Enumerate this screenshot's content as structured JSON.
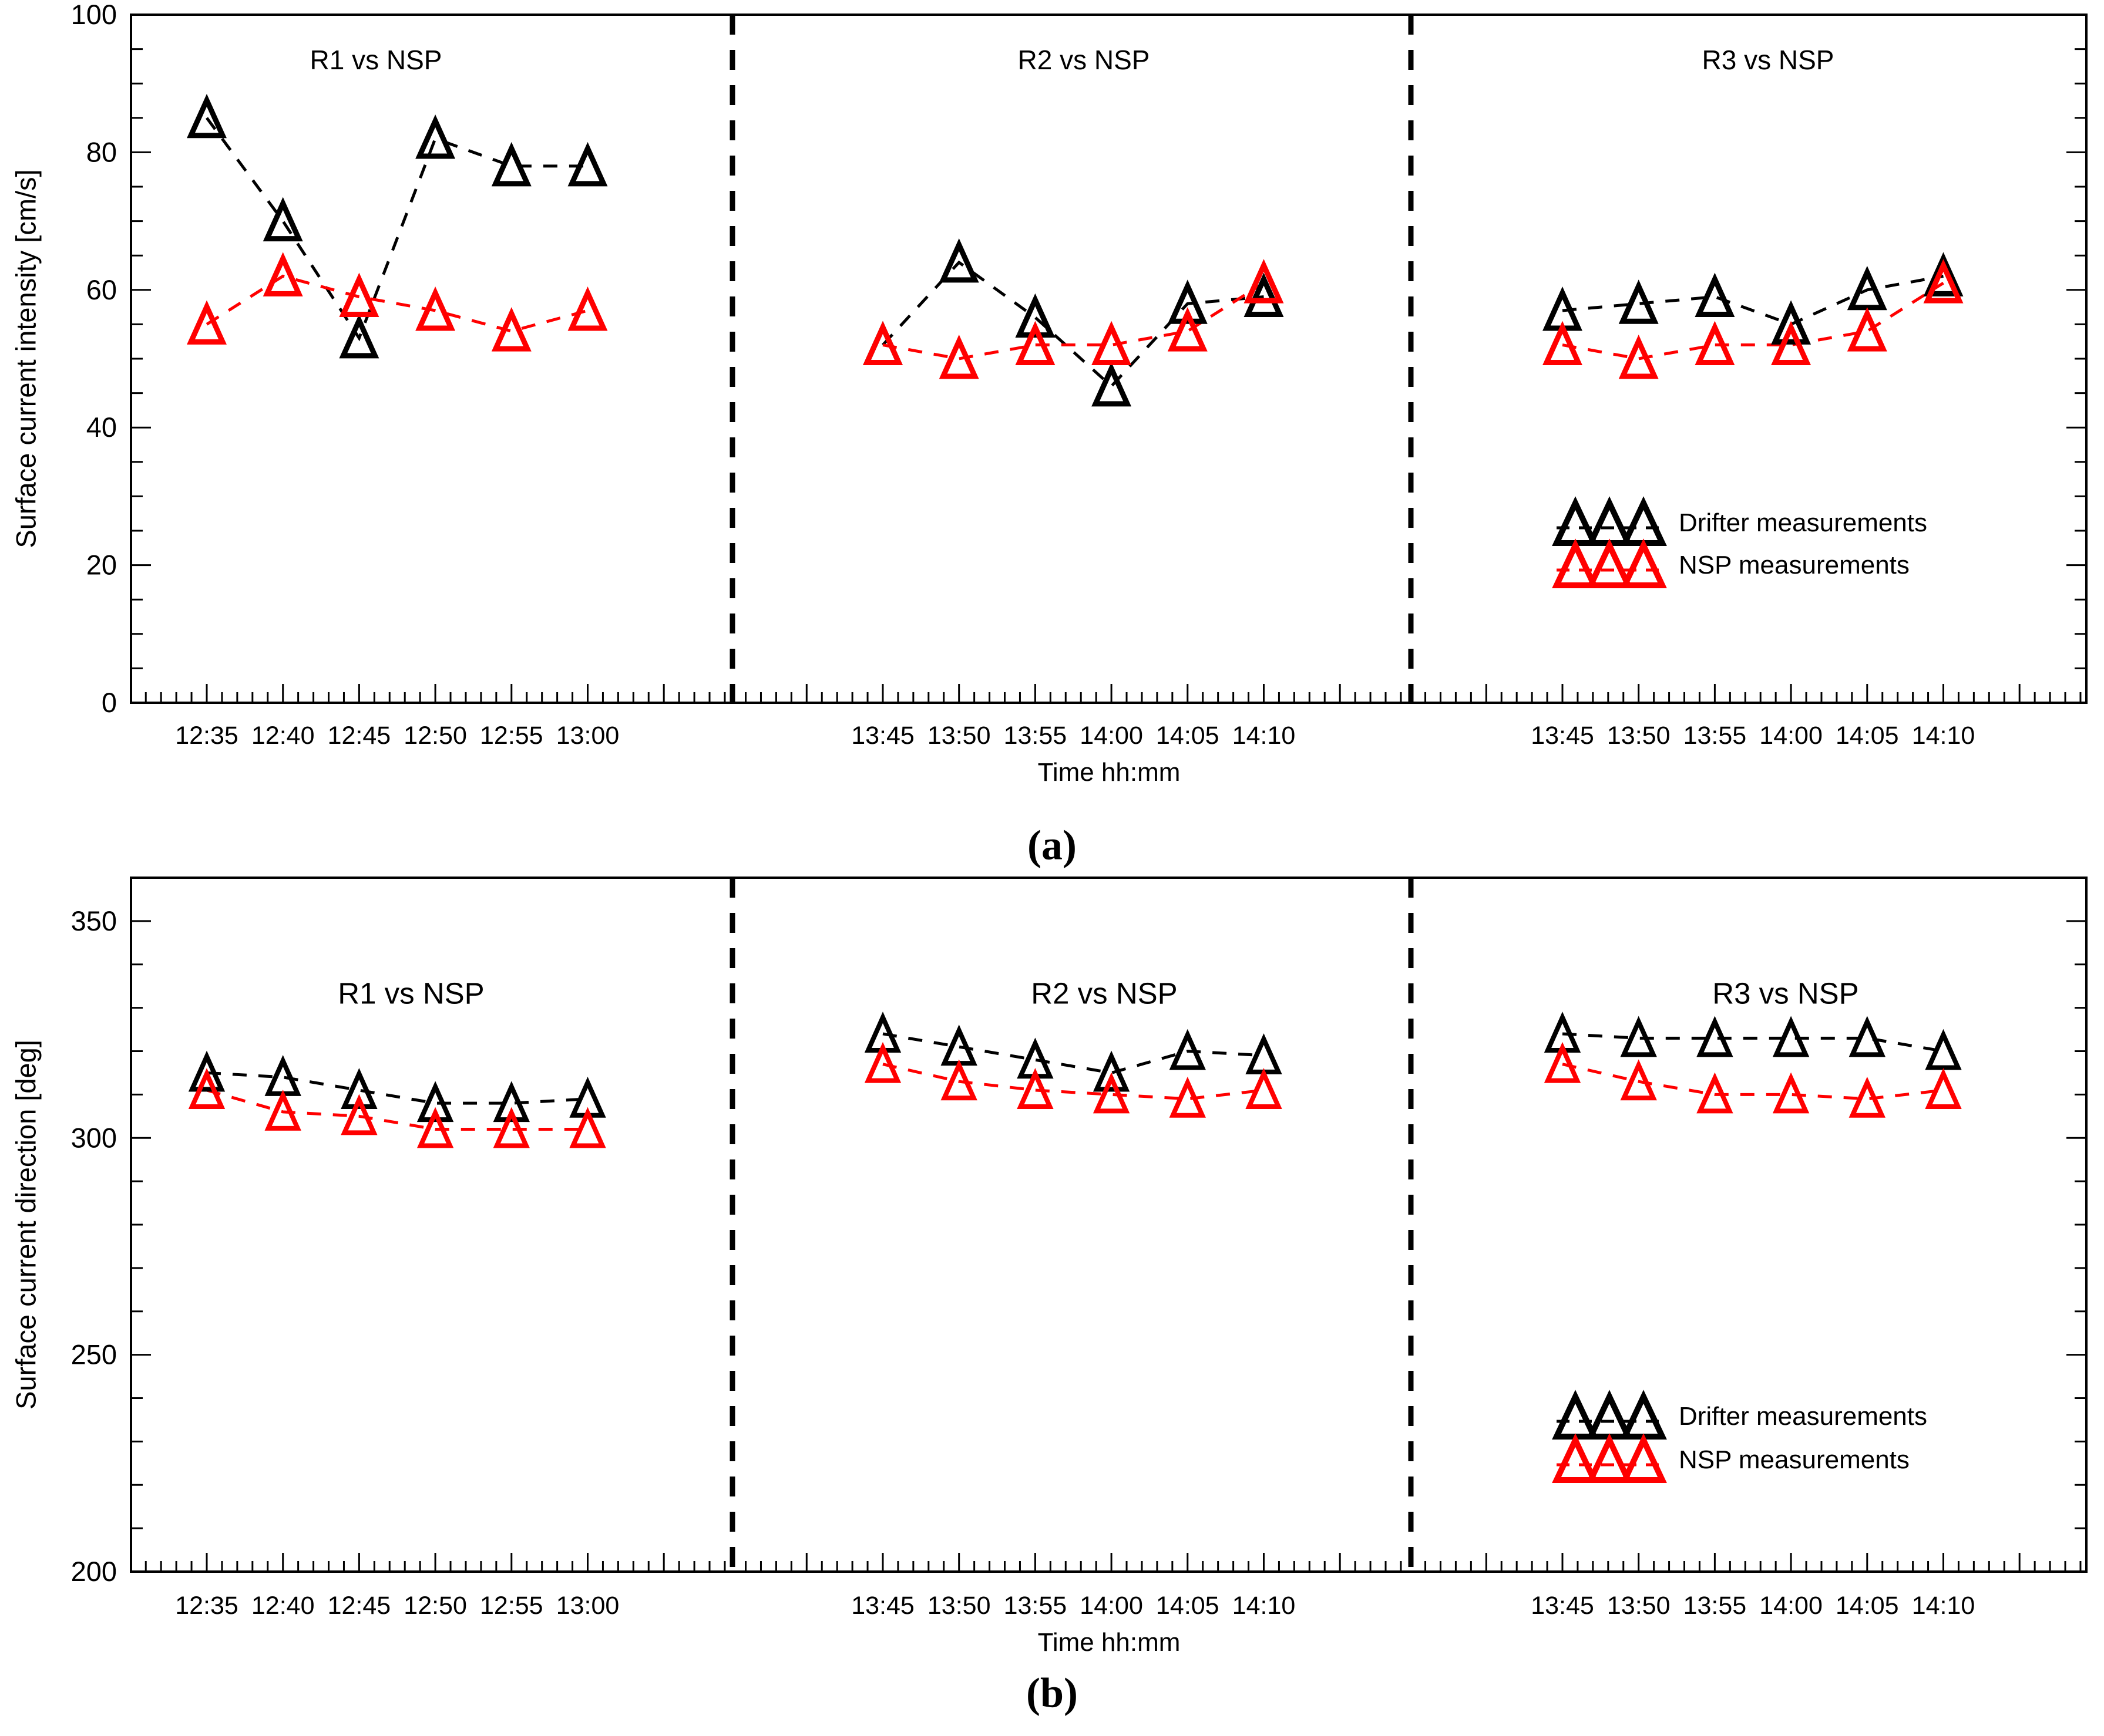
{
  "figure": {
    "caption_a": "(a)",
    "caption_b": "(b)",
    "background": "#ffffff",
    "colors": {
      "drifter": "#000000",
      "nsp": "#ff0000"
    },
    "legend": {
      "drifter_label": "Drifter measurements",
      "nsp_label": "NSP measurements"
    }
  },
  "chart_data": [
    {
      "type": "line",
      "figure_label": "(a)",
      "ylabel": "Surface current intensity [cm/s]",
      "xlabel": "Time hh:mm",
      "ylim": [
        0,
        100
      ],
      "yticks": [
        0,
        20,
        40,
        60,
        80,
        100
      ],
      "y_minor_step": 5,
      "marker": "triangle-open",
      "line_style": "dashed",
      "grid": false,
      "legend_position": "lower-right",
      "panels": [
        {
          "title": "R1 vs NSP",
          "x": [
            "12:35",
            "12:40",
            "12:45",
            "12:50",
            "12:55",
            "13:00"
          ],
          "series": [
            {
              "name": "Drifter measurements",
              "color": "#000000",
              "values": [
                85,
                70,
                53,
                82,
                78,
                78
              ]
            },
            {
              "name": "NSP measurements",
              "color": "#ff0000",
              "values": [
                55,
                62,
                59,
                57,
                54,
                57
              ]
            }
          ]
        },
        {
          "title": "R2 vs NSP",
          "x": [
            "13:45",
            "13:50",
            "13:55",
            "14:00",
            "14:05",
            "14:10"
          ],
          "series": [
            {
              "name": "Drifter measurements",
              "color": "#000000",
              "values": [
                52,
                64,
                56,
                46,
                58,
                59
              ]
            },
            {
              "name": "NSP measurements",
              "color": "#ff0000",
              "values": [
                52,
                50,
                52,
                52,
                54,
                61
              ]
            }
          ]
        },
        {
          "title": "R3 vs NSP",
          "x": [
            "13:45",
            "13:50",
            "13:55",
            "14:00",
            "14:05",
            "14:10"
          ],
          "series": [
            {
              "name": "Drifter measurements",
              "color": "#000000",
              "values": [
                57,
                58,
                59,
                55,
                60,
                62
              ]
            },
            {
              "name": "NSP measurements",
              "color": "#ff0000",
              "values": [
                52,
                50,
                52,
                52,
                54,
                61
              ]
            }
          ]
        }
      ]
    },
    {
      "type": "line",
      "figure_label": "(b)",
      "ylabel": "Surface current direction [deg]",
      "xlabel": "Time hh:mm",
      "ylim": [
        200,
        360
      ],
      "yticks": [
        200,
        250,
        300,
        350
      ],
      "y_minor_step": 10,
      "marker": "triangle-open",
      "line_style": "dashed",
      "grid": false,
      "legend_position": "lower-right",
      "panels": [
        {
          "title": "R1 vs NSP",
          "x": [
            "12:35",
            "12:40",
            "12:45",
            "12:50",
            "12:55",
            "13:00"
          ],
          "series": [
            {
              "name": "Drifter measurements",
              "color": "#000000",
              "values": [
                315,
                314,
                311,
                308,
                308,
                309
              ]
            },
            {
              "name": "NSP measurements",
              "color": "#ff0000",
              "values": [
                311,
                306,
                305,
                302,
                302,
                302
              ]
            }
          ]
        },
        {
          "title": "R2 vs NSP",
          "x": [
            "13:45",
            "13:50",
            "13:55",
            "14:00",
            "14:05",
            "14:10"
          ],
          "series": [
            {
              "name": "Drifter measurements",
              "color": "#000000",
              "values": [
                324,
                321,
                318,
                315,
                320,
                319
              ]
            },
            {
              "name": "NSP measurements",
              "color": "#ff0000",
              "values": [
                317,
                313,
                311,
                310,
                309,
                311
              ]
            }
          ]
        },
        {
          "title": "R3 vs NSP",
          "x": [
            "13:45",
            "13:50",
            "13:55",
            "14:00",
            "14:05",
            "14:10"
          ],
          "series": [
            {
              "name": "Drifter measurements",
              "color": "#000000",
              "values": [
                324,
                323,
                323,
                323,
                323,
                320
              ]
            },
            {
              "name": "NSP measurements",
              "color": "#ff0000",
              "values": [
                317,
                313,
                310,
                310,
                309,
                311
              ]
            }
          ]
        }
      ]
    }
  ]
}
